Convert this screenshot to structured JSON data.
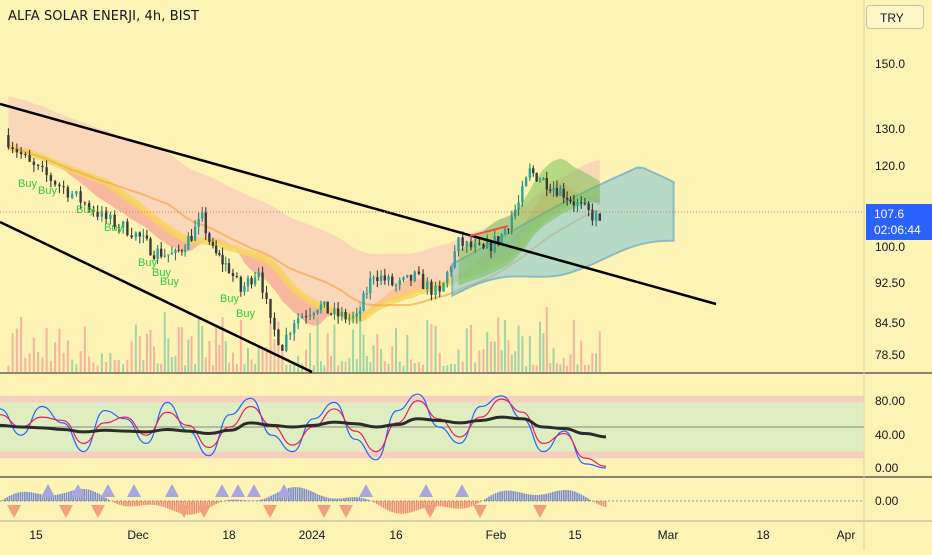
{
  "header": {
    "title": "ALFA SOLAR ENERJI, 4h, BIST",
    "currency": "TRY"
  },
  "last_price": {
    "value": "107.6",
    "countdown": "02:06:44",
    "color": "#2962ff"
  },
  "colors": {
    "background": "#fdf3b4",
    "up_candle": "#26a69a",
    "down_candle": "#ef5350",
    "trendline": "#000000",
    "cloud_blue": "#5ab4d8",
    "cloud_green": "#4caf50",
    "buy_label": "#2ecc40",
    "stoch_k": "#2962ff",
    "stoch_d": "#e91e63"
  },
  "chart_data": [
    {
      "type": "candlestick",
      "panel": "price",
      "x_tick_labels": [
        "15",
        "Dec",
        "18",
        "2024",
        "16",
        "Feb",
        "15",
        "Mar",
        "18",
        "Apr"
      ],
      "y_tick_labels": [
        "150.0",
        "130.0",
        "120.0",
        "100.0",
        "92.50",
        "84.50",
        "78.50"
      ],
      "y_scale": "log",
      "ylim": [
        75,
        175
      ],
      "close_path": [
        {
          "x": "Nov 10",
          "y": 132
        },
        {
          "x": "Nov 14",
          "y": 123
        },
        {
          "x": "Nov 18",
          "y": 118
        },
        {
          "x": "Nov 22",
          "y": 113
        },
        {
          "x": "Nov 26",
          "y": 108
        },
        {
          "x": "Nov 30",
          "y": 105
        },
        {
          "x": "Dec 4",
          "y": 100
        },
        {
          "x": "Dec 8",
          "y": 99
        },
        {
          "x": "Dec 11",
          "y": 104
        },
        {
          "x": "Dec 13",
          "y": 108
        },
        {
          "x": "Dec 15",
          "y": 100
        },
        {
          "x": "Dec 18",
          "y": 96
        },
        {
          "x": "Dec 20",
          "y": 91
        },
        {
          "x": "Dec 23",
          "y": 96
        },
        {
          "x": "Dec 25",
          "y": 84
        },
        {
          "x": "Dec 27",
          "y": 80
        },
        {
          "x": "Dec 29",
          "y": 85
        },
        {
          "x": "Jan 2",
          "y": 88
        },
        {
          "x": "Jan 5",
          "y": 86
        },
        {
          "x": "Jan 9",
          "y": 85
        },
        {
          "x": "Jan 12",
          "y": 95
        },
        {
          "x": "Jan 16",
          "y": 92
        },
        {
          "x": "Jan 19",
          "y": 94
        },
        {
          "x": "Jan 23",
          "y": 90
        },
        {
          "x": "Jan 26",
          "y": 102
        },
        {
          "x": "Jan 30",
          "y": 100
        },
        {
          "x": "Feb 2",
          "y": 104
        },
        {
          "x": "Feb 5",
          "y": 112
        },
        {
          "x": "Feb 7",
          "y": 121
        },
        {
          "x": "Feb 10",
          "y": 118
        },
        {
          "x": "Feb 13",
          "y": 115
        },
        {
          "x": "Feb 16",
          "y": 111
        },
        {
          "x": "Feb 19",
          "y": 107.6
        }
      ],
      "buy_signals": [
        "Buy",
        "Buy",
        "Buy",
        "Buy",
        "Buy",
        "Buy",
        "Buy",
        "Buy",
        "Buy"
      ],
      "current_price": 107.6
    },
    {
      "type": "line",
      "panel": "stochastic",
      "y_tick_labels": [
        "80.00",
        "40.00",
        "0.00"
      ],
      "ylim": [
        0,
        100
      ],
      "bands": [
        20,
        80
      ],
      "series": [
        {
          "values": [
            72,
            40,
            75,
            55,
            20,
            70,
            60,
            30,
            80,
            45,
            15,
            65,
            85,
            40,
            20,
            60,
            80,
            35,
            10,
            70,
            90,
            50,
            30,
            75,
            88,
            60,
            20,
            45,
            5,
            0
          ]
        },
        {
          "values": [
            65,
            50,
            62,
            58,
            30,
            55,
            62,
            40,
            68,
            52,
            25,
            50,
            75,
            52,
            28,
            50,
            72,
            45,
            20,
            55,
            82,
            60,
            38,
            62,
            84,
            68,
            30,
            42,
            12,
            2
          ]
        },
        {
          "values": [
            52,
            50,
            49,
            47,
            44,
            46,
            45,
            44,
            47,
            45,
            42,
            46,
            55,
            52,
            50,
            52,
            56,
            54,
            50,
            53,
            60,
            58,
            55,
            58,
            62,
            60,
            50,
            48,
            42,
            38
          ]
        }
      ]
    },
    {
      "type": "histogram",
      "panel": "oscillator",
      "y_tick_labels": [
        "0.00"
      ],
      "triangle_up_count": 12,
      "triangle_down_count": 11
    }
  ]
}
